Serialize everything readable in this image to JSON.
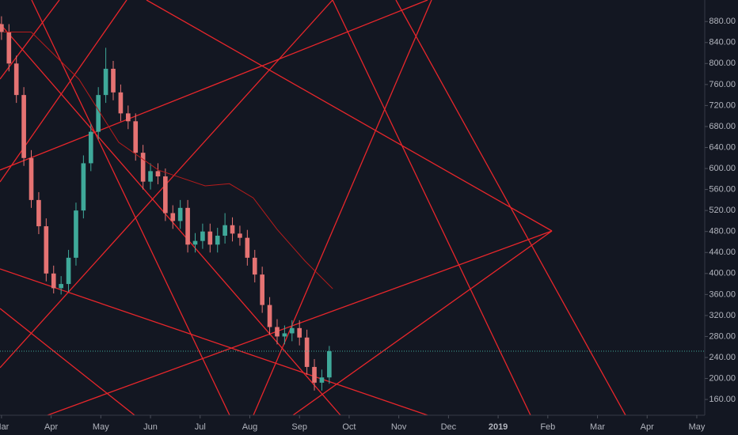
{
  "chart_data": {
    "type": "candlestick",
    "x": [
      0,
      0.15,
      0.3,
      0.45,
      0.6,
      0.75,
      0.9,
      1.05,
      1.2,
      1.35,
      1.5,
      1.65,
      1.8,
      1.95,
      2.1,
      2.25,
      2.4,
      2.55,
      2.7,
      2.85,
      3.0,
      3.15,
      3.3,
      3.45,
      3.6,
      3.75,
      3.9,
      4.05,
      4.2,
      4.35,
      4.5,
      4.65,
      4.8,
      4.95,
      5.1,
      5.25,
      5.4,
      5.55,
      5.7,
      5.85,
      6.0,
      6.15,
      6.3,
      6.45,
      6.6
    ],
    "open": [
      875,
      860,
      800,
      740,
      620,
      540,
      490,
      400,
      372,
      380,
      430,
      520,
      610,
      670,
      740,
      790,
      745,
      705,
      690,
      630,
      575,
      595,
      585,
      515,
      500,
      525,
      455,
      462,
      480,
      455,
      472,
      492,
      476,
      468,
      430,
      398,
      340,
      298,
      280,
      286,
      296,
      278,
      222,
      192,
      202
    ],
    "high": [
      890,
      875,
      815,
      755,
      635,
      555,
      505,
      415,
      395,
      445,
      535,
      625,
      685,
      755,
      830,
      805,
      760,
      720,
      705,
      645,
      610,
      610,
      600,
      530,
      540,
      540,
      477,
      495,
      495,
      487,
      515,
      507,
      491,
      483,
      445,
      413,
      355,
      313,
      301,
      311,
      311,
      293,
      237,
      217,
      262
    ],
    "low": [
      845,
      785,
      725,
      605,
      525,
      475,
      385,
      362,
      360,
      365,
      415,
      505,
      595,
      655,
      725,
      730,
      690,
      675,
      615,
      560,
      560,
      570,
      500,
      485,
      485,
      440,
      440,
      447,
      440,
      440,
      457,
      461,
      453,
      415,
      383,
      325,
      283,
      265,
      265,
      271,
      263,
      207,
      177,
      177,
      190
    ],
    "close": [
      860,
      800,
      740,
      620,
      540,
      490,
      400,
      372,
      380,
      430,
      520,
      610,
      670,
      740,
      790,
      745,
      705,
      690,
      630,
      575,
      595,
      585,
      515,
      500,
      525,
      455,
      462,
      480,
      455,
      472,
      492,
      476,
      468,
      430,
      398,
      340,
      298,
      280,
      286,
      296,
      278,
      222,
      192,
      202,
      252
    ],
    "up_color": "#3fa99a",
    "down_color": "#e57373",
    "moving_average": {
      "x": [
        0.05,
        0.6,
        1.56,
        2.36,
        3.16,
        4.1,
        4.59,
        5.07,
        5.55,
        6.11,
        6.67
      ],
      "values": [
        860,
        860,
        770,
        650,
        597,
        567,
        571,
        544,
        484,
        424,
        371
      ],
      "color": "#b71c1c"
    },
    "xlim": [
      -0.03,
      14.16
    ],
    "ylim": [
      130,
      921
    ],
    "xticks": [
      {
        "value": 0,
        "label": "Mar"
      },
      {
        "value": 1,
        "label": "Apr"
      },
      {
        "value": 2,
        "label": "May"
      },
      {
        "value": 3,
        "label": "Jun"
      },
      {
        "value": 4,
        "label": "Jul"
      },
      {
        "value": 5,
        "label": "Aug"
      },
      {
        "value": 6,
        "label": "Sep"
      },
      {
        "value": 7,
        "label": "Oct"
      },
      {
        "value": 8,
        "label": "Nov"
      },
      {
        "value": 9,
        "label": "Dec"
      },
      {
        "value": 10,
        "label": "2019"
      },
      {
        "value": 11,
        "label": "Feb"
      },
      {
        "value": 12,
        "label": "Mar"
      },
      {
        "value": 13,
        "label": "Apr"
      },
      {
        "value": 14,
        "label": "May"
      }
    ],
    "yticks": [
      {
        "value": 160,
        "label": "160.00"
      },
      {
        "value": 200,
        "label": "200.00"
      },
      {
        "value": 240,
        "label": "240.00"
      },
      {
        "value": 280,
        "label": "280.00"
      },
      {
        "value": 320,
        "label": "320.00"
      },
      {
        "value": 360,
        "label": "360.00"
      },
      {
        "value": 400,
        "label": "400.00"
      },
      {
        "value": 440,
        "label": "440.00"
      },
      {
        "value": 480,
        "label": "480.00"
      },
      {
        "value": 520,
        "label": "520.00"
      },
      {
        "value": 560,
        "label": "560.00"
      },
      {
        "value": 600,
        "label": "600.00"
      },
      {
        "value": 640,
        "label": "640.00"
      },
      {
        "value": 680,
        "label": "680.00"
      },
      {
        "value": 720,
        "label": "720.00"
      },
      {
        "value": 760,
        "label": "760.00"
      },
      {
        "value": 800,
        "label": "800.00"
      },
      {
        "value": 840,
        "label": "840.00"
      },
      {
        "value": 880,
        "label": "880.00"
      }
    ]
  }
}
